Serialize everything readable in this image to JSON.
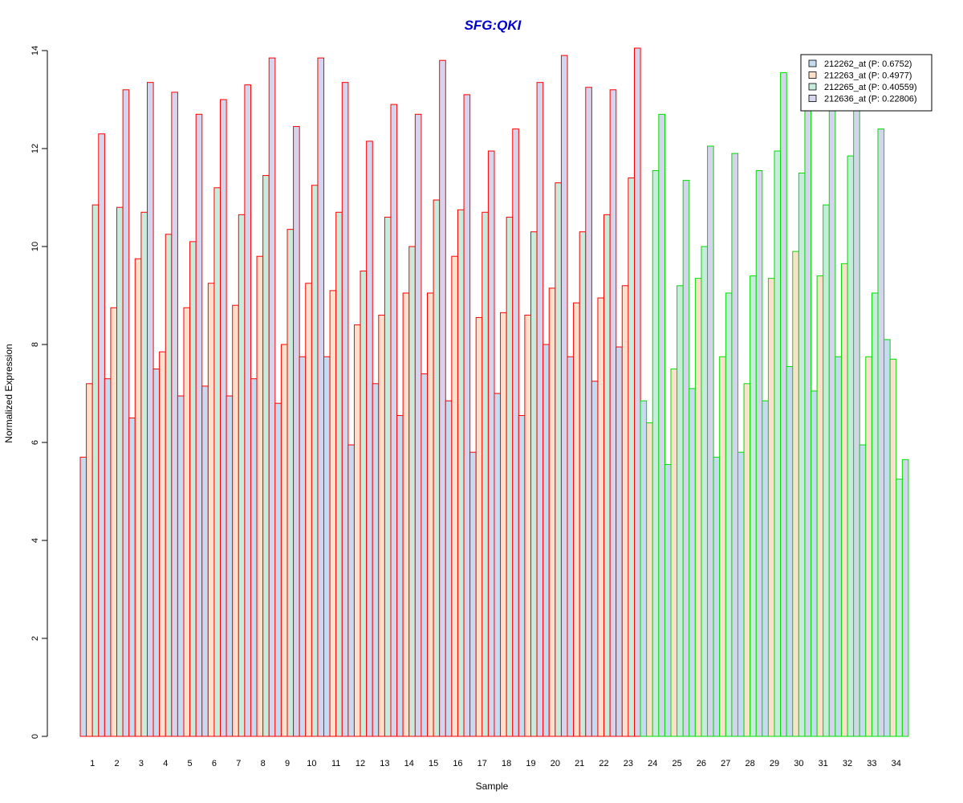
{
  "chart_data": {
    "type": "bar",
    "title": "SFG:QKI",
    "xlabel": "Sample",
    "ylabel": "Normalized Expression",
    "ylim": [
      0,
      14
    ],
    "yticks": [
      0,
      2,
      4,
      6,
      8,
      10,
      12,
      14
    ],
    "grid": false,
    "legend_position": "top-right",
    "title_color": "#0000cc",
    "categories": [
      "1",
      "2",
      "3",
      "4",
      "5",
      "6",
      "7",
      "8",
      "9",
      "10",
      "11",
      "12",
      "13",
      "14",
      "15",
      "16",
      "17",
      "18",
      "19",
      "20",
      "21",
      "22",
      "23",
      "24",
      "25",
      "26",
      "27",
      "28",
      "29",
      "30",
      "31",
      "32",
      "33",
      "34"
    ],
    "group_border_colors": {
      "samples_1_to_23": "#ff0000",
      "samples_24_to_34": "#00dd00"
    },
    "series": [
      {
        "name": "212262_at (P: 0.6752)",
        "fill": "#c6dbef",
        "values": [
          5.7,
          7.3,
          6.5,
          7.5,
          6.95,
          7.15,
          6.95,
          7.3,
          6.8,
          7.75,
          7.75,
          5.95,
          7.2,
          6.55,
          7.4,
          6.85,
          5.8,
          7.0,
          6.55,
          8.0,
          7.75,
          7.25,
          7.95,
          6.85,
          5.55,
          7.1,
          5.7,
          5.8,
          6.85,
          7.55,
          7.05,
          7.75,
          5.95,
          8.1
        ]
      },
      {
        "name": "212263_at (P: 0.4977)",
        "fill": "#fde0cc",
        "values": [
          7.2,
          8.75,
          9.75,
          7.85,
          8.75,
          9.25,
          8.8,
          9.8,
          8.0,
          9.25,
          9.1,
          8.4,
          8.6,
          9.05,
          9.05,
          9.8,
          8.55,
          8.65,
          8.6,
          9.15,
          8.85,
          8.95,
          9.2,
          6.4,
          7.5,
          9.35,
          7.75,
          7.2,
          9.35,
          9.9,
          9.4,
          9.65,
          7.75,
          7.7
        ]
      },
      {
        "name": "212265_at (P: 0.40559)",
        "fill": "#c7ecdc",
        "values": [
          10.85,
          10.8,
          10.7,
          10.25,
          10.1,
          11.2,
          10.65,
          11.45,
          10.35,
          11.25,
          10.7,
          9.5,
          10.6,
          10.0,
          10.95,
          10.75,
          10.7,
          10.6,
          10.3,
          11.3,
          10.3,
          10.65,
          11.4,
          11.55,
          9.2,
          10.0,
          9.05,
          9.4,
          11.95,
          11.5,
          10.85,
          11.85,
          9.05,
          5.25
        ]
      },
      {
        "name": "212636_at (P: 0.22806)",
        "fill": "#d4d4ec",
        "values": [
          12.3,
          13.2,
          13.35,
          13.15,
          12.7,
          13.0,
          13.3,
          13.85,
          12.45,
          13.85,
          13.35,
          12.15,
          12.9,
          12.7,
          13.8,
          13.1,
          11.95,
          12.4,
          13.35,
          13.9,
          13.25,
          13.2,
          14.05,
          12.7,
          11.35,
          12.05,
          11.9,
          11.55,
          13.55,
          12.8,
          12.8,
          12.8,
          12.4,
          5.65
        ]
      }
    ]
  }
}
